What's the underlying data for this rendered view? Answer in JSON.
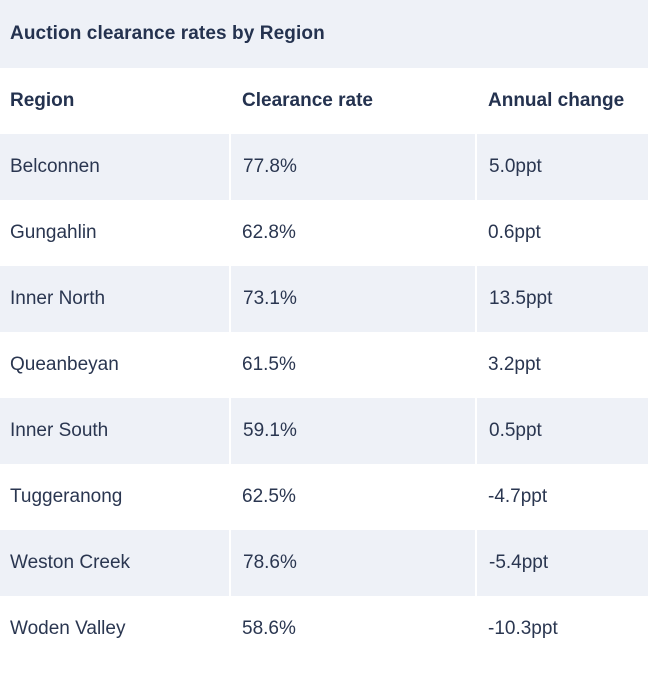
{
  "chart_data": {
    "type": "table",
    "title": "Auction clearance rates by Region",
    "columns": [
      "Region",
      "Clearance rate",
      "Annual change"
    ],
    "rows": [
      [
        "Belconnen",
        "77.8%",
        "5.0ppt"
      ],
      [
        "Gungahlin",
        "62.8%",
        "0.6ppt"
      ],
      [
        "Inner North",
        "73.1%",
        "13.5ppt"
      ],
      [
        "Queanbeyan",
        "61.5%",
        "3.2ppt"
      ],
      [
        "Inner South",
        "59.1%",
        "0.5ppt"
      ],
      [
        "Tuggeranong",
        "62.5%",
        "-4.7ppt"
      ],
      [
        "Weston Creek",
        "78.6%",
        "-5.4ppt"
      ],
      [
        "Woden Valley",
        "58.6%",
        "-10.3ppt"
      ]
    ],
    "colors": {
      "stripe": "#eef1f7",
      "text": "#24324f",
      "background": "#ffffff"
    }
  }
}
